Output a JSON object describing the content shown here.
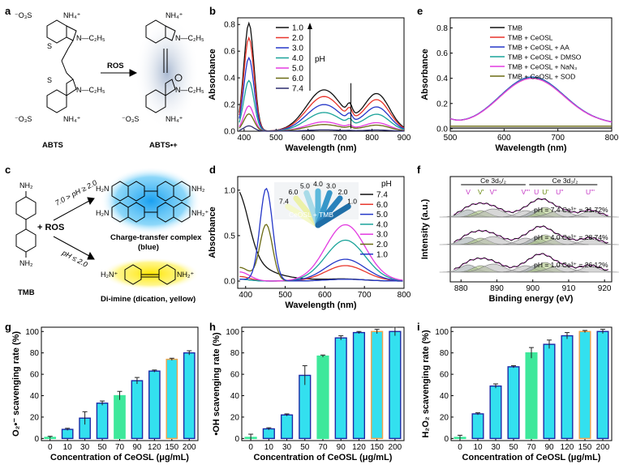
{
  "panel_labels": [
    "a",
    "b",
    "c",
    "d",
    "e",
    "f",
    "g",
    "h",
    "i"
  ],
  "colors": {
    "c1": "#111111",
    "c2": "#e8342a",
    "c3": "#2537c8",
    "c4": "#1aa39a",
    "c5": "#e33be0",
    "c6": "#6b6b13",
    "c7": "#2c2c6e",
    "bar_cyan": "#33e0ef",
    "bar_green": "#3ee89b",
    "bar_navy": "#1d2aa6",
    "bar_orange": "#f2a24a"
  },
  "a": {
    "abts": "ABTS",
    "abts_rad": "ABTS•+",
    "ros": "ROS",
    "so3": "⁻O₃S",
    "nh4": "NH₄⁺",
    "et": "N—C₂H₅",
    "s": "S",
    "n": "N"
  },
  "c": {
    "tmb": "TMB",
    "ros": "+ ROS",
    "cond1": "7.0 > pH ≥ 2.0",
    "cond2": "pH ≤ 2.0",
    "ctc": "Charge-transfer complex",
    "ctc2": "(blue)",
    "dii": "Di-imine  (dication, yellow)",
    "nh2": "NH₂",
    "h2n": "H₂N",
    "h2n_p": "H₂N⁺",
    "nh2_p": "NH₂⁺"
  },
  "b": {
    "legend_title": "pH",
    "series": [
      "1.0",
      "2.0",
      "3.0",
      "4.0",
      "5.0",
      "6.0",
      "7.4"
    ],
    "xlabel": "Wavelength (nm)",
    "ylabel": "Absorbance",
    "xticks": [
      "400",
      "500",
      "600",
      "700",
      "800",
      "900"
    ],
    "yticks": [
      "0.0",
      "0.2",
      "0.4",
      "0.6",
      "0.8"
    ]
  },
  "d": {
    "legend_title": "pH",
    "series": [
      "7.4",
      "6.0",
      "5.0",
      "4.0",
      "3.0",
      "2.0",
      "1.0"
    ],
    "xlabel": "Wavelength (nm)",
    "ylabel": "Absorbance",
    "xticks": [
      "400",
      "500",
      "600",
      "700",
      "800"
    ],
    "yticks": [
      "0.0",
      "0.5",
      "1.0"
    ],
    "inset_label": "CeOSL + TMB",
    "inset_ph": [
      "7.4",
      "6.0",
      "5.0",
      "4.0",
      "3.0",
      "2.0",
      "1.0"
    ]
  },
  "e": {
    "series": [
      "TMB",
      "TMB + CeOSL",
      "TMB + CeOSL + AA",
      "TMB + CeOSL + DMSO",
      "TMB + CeOSL + NaN₃",
      "TMB + CeOSL + SOD"
    ],
    "xlabel": "Wavelength (nm)",
    "ylabel": "Absorbance",
    "xticks": [
      "500",
      "600",
      "700",
      "800"
    ],
    "yticks": [
      "0.0",
      "0.2",
      "0.4",
      "0.6",
      "0.8"
    ]
  },
  "f": {
    "xlabel": "Binding energy (eV)",
    "ylabel": "Intensity (a.u.)",
    "xticks": [
      "880",
      "890",
      "900",
      "910",
      "920"
    ],
    "region1": "Ce 3d₅/₂",
    "region2": "Ce 3d₃/₂",
    "peaks": [
      "V",
      "V'",
      "V''",
      "V'''",
      "U",
      "U'",
      "U''",
      "U'''"
    ],
    "rows": [
      "pH = 7.4 Ce³⁺ = 31.72%",
      "pH = 4.0 Ce³⁺ = 28.74%",
      "pH = 1.0 Ce³⁺ = 26.12%"
    ]
  },
  "g": {
    "ylabel": "O₂•⁻ scavenging rate (%)",
    "xlabel": "Concentration of CeOSL (μg/mL)"
  },
  "h": {
    "ylabel": "•OH scavenging rate (%)",
    "xlabel": "Concentration of CeOSL (μg/mL)"
  },
  "i": {
    "ylabel": "H₂O₂ scavenging rate (%)",
    "xlabel": "Concentration of CeOSL (μg/mL)"
  },
  "chart_data": [
    {
      "type": "bar",
      "panel": "g",
      "categories": [
        "0",
        "10",
        "30",
        "50",
        "70",
        "90",
        "120",
        "150",
        "200"
      ],
      "values": [
        1,
        8.5,
        19,
        33,
        40,
        54,
        63,
        74,
        80
      ],
      "errors": [
        1,
        1,
        6,
        2,
        4,
        3,
        1,
        1,
        2
      ],
      "ylim": [
        0,
        100
      ],
      "yticks": [
        "0",
        "20",
        "40",
        "60",
        "80",
        "100"
      ]
    },
    {
      "type": "bar",
      "panel": "h",
      "categories": [
        "0",
        "10",
        "30",
        "50",
        "70",
        "90",
        "120",
        "150",
        "200"
      ],
      "values": [
        1,
        9,
        22,
        59,
        77,
        94,
        99,
        100,
        100
      ],
      "errors": [
        3,
        1,
        1,
        9,
        1,
        2,
        1,
        2,
        4
      ],
      "ylim": [
        0,
        100
      ],
      "yticks": [
        "0",
        "20",
        "40",
        "60",
        "80",
        "100"
      ]
    },
    {
      "type": "bar",
      "panel": "i",
      "categories": [
        "0",
        "10",
        "30",
        "50",
        "70",
        "90",
        "120",
        "150",
        "200"
      ],
      "values": [
        1,
        23,
        49,
        67,
        80,
        88,
        96,
        100,
        100
      ],
      "errors": [
        2,
        1,
        2,
        1,
        5,
        4,
        3,
        1,
        2
      ],
      "ylim": [
        0,
        100
      ],
      "yticks": [
        "0",
        "20",
        "40",
        "60",
        "80",
        "100"
      ]
    }
  ]
}
